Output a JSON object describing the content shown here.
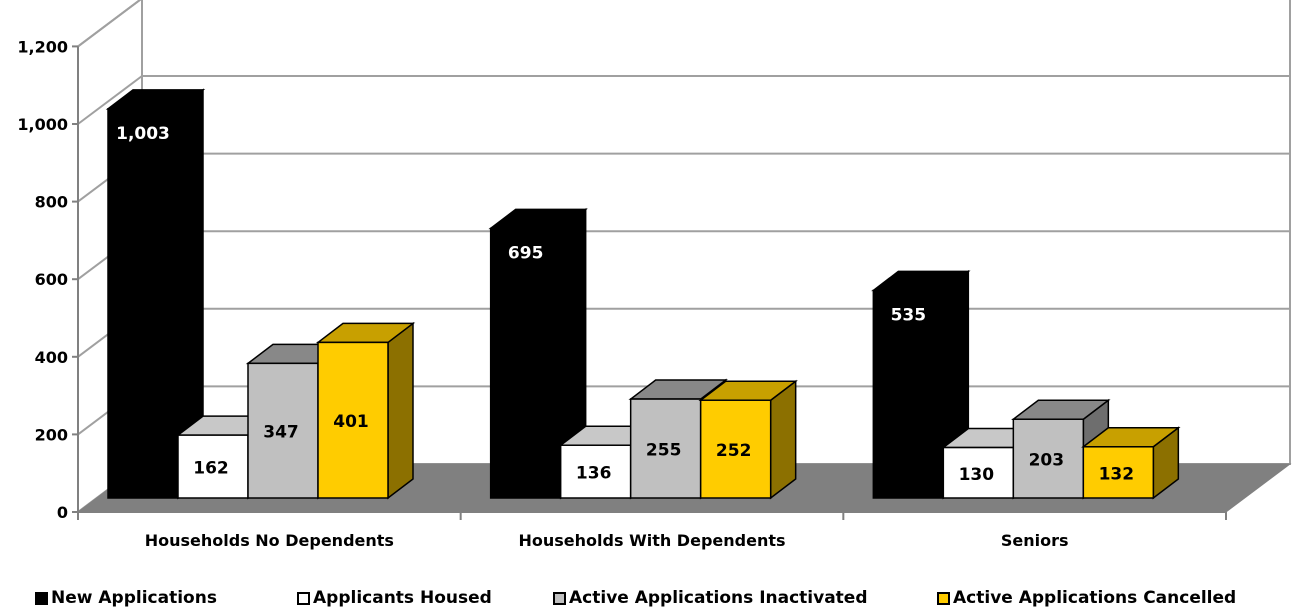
{
  "chart_data": {
    "type": "bar",
    "title": "",
    "xlabel": "",
    "ylabel": "",
    "ylim": [
      0,
      1200
    ],
    "yticks": [
      "0",
      "200",
      "400",
      "600",
      "800",
      "1,000",
      "1,200"
    ],
    "grid": true,
    "legend_position": "bottom",
    "categories": [
      "Households No Dependents",
      "Households With Dependents",
      "Seniors"
    ],
    "series": [
      {
        "name": "New Applications",
        "values": [
          1003,
          695,
          535
        ],
        "labels": [
          "1,003",
          "695",
          "535"
        ],
        "color": "#000000",
        "label_color": "#ffffff"
      },
      {
        "name": "Applicants Housed",
        "values": [
          162,
          136,
          130
        ],
        "labels": [
          "162",
          "136",
          "130"
        ],
        "color": "#ffffff",
        "label_color": "#000000"
      },
      {
        "name": "Active Applications Inactivated",
        "values": [
          347,
          255,
          203
        ],
        "labels": [
          "347",
          "255",
          "203"
        ],
        "color": "#c0c0c0",
        "label_color": "#000000"
      },
      {
        "name": "Active Applications Cancelled",
        "values": [
          401,
          252,
          132
        ],
        "labels": [
          "401",
          "252",
          "132"
        ],
        "color": "#ffcc00",
        "label_color": "#000000"
      }
    ]
  }
}
